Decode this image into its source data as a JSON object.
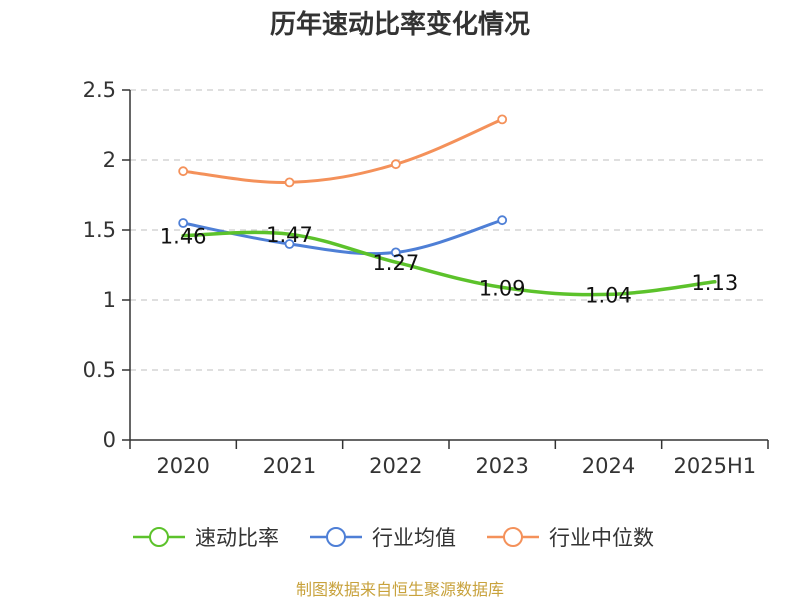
{
  "chart_data": {
    "type": "line",
    "title": "历年速动比率变化情况",
    "categories": [
      "2020",
      "2021",
      "2022",
      "2023",
      "2024",
      "2025H1"
    ],
    "ylim": [
      0,
      2.5
    ],
    "yticks": [
      "0",
      "0.5",
      "1",
      "1.5",
      "2",
      "2.5"
    ],
    "grid": true,
    "legend_position": "bottom",
    "series": [
      {
        "name": "速动比率",
        "color": "#5cc22b",
        "values": [
          1.46,
          1.47,
          1.27,
          1.09,
          1.04,
          1.13
        ],
        "labels": [
          "1.46",
          "1.47",
          "1.27",
          "1.09",
          "1.04",
          "1.13"
        ],
        "markers": false
      },
      {
        "name": "行业均值",
        "color": "#4e7fd6",
        "values": [
          1.55,
          1.4,
          1.34,
          1.57,
          null,
          null
        ],
        "markers": true
      },
      {
        "name": "行业中位数",
        "color": "#f4915a",
        "values": [
          1.92,
          1.84,
          1.97,
          2.29,
          null,
          null
        ],
        "markers": true
      }
    ]
  },
  "source_text": "制图数据来自恒生聚源数据库"
}
